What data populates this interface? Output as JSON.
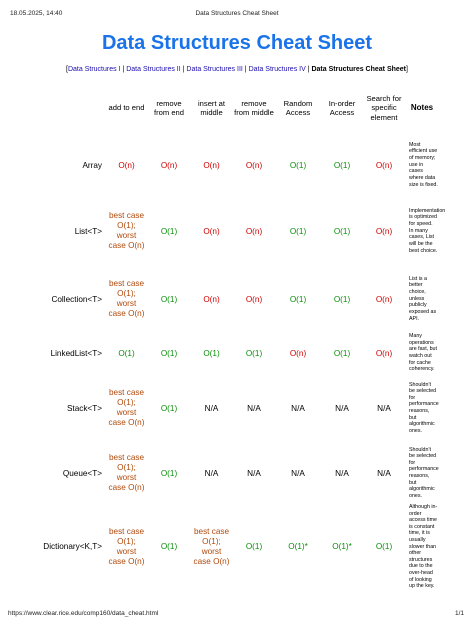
{
  "print": {
    "datetime": "18.05.2025, 14:40",
    "doc_title": "Data Structures Cheat Sheet",
    "url": "https://www.clear.rice.edu/comp160/data_cheat.html",
    "page": "1/1"
  },
  "title": "Data Structures Cheat Sheet",
  "nav": {
    "open": "[",
    "sep": " | ",
    "close": "]",
    "links": [
      "Data Structures I",
      "Data Structures II",
      "Data Structures III",
      "Data Structures IV"
    ],
    "current": "Data Structures Cheat Sheet"
  },
  "colors": {
    "title": "#1a73e8",
    "slow": "#d40000",
    "fast": "#0a8f0a",
    "mixed": "#b04a0c"
  },
  "table": {
    "headers": [
      "",
      "add to end",
      "remove from end",
      "insert at middle",
      "remove from middle",
      "Random Access",
      "In-order Access",
      "Search for specific element",
      "Notes"
    ],
    "rows": [
      {
        "name": "Array",
        "cells": [
          {
            "text": "O(n)",
            "tone": "red"
          },
          {
            "text": "O(n)",
            "tone": "red"
          },
          {
            "text": "O(n)",
            "tone": "red"
          },
          {
            "text": "O(n)",
            "tone": "red"
          },
          {
            "text": "O(1)",
            "tone": "green"
          },
          {
            "text": "O(1)",
            "tone": "green"
          },
          {
            "text": "O(n)",
            "tone": "red"
          }
        ],
        "note": "Most efficient use of memory; use in cases where data size is fixed."
      },
      {
        "name": "List<T>",
        "cells": [
          {
            "text": "best case O(1); worst case O(n)",
            "tone": "brown"
          },
          {
            "text": "O(1)",
            "tone": "green"
          },
          {
            "text": "O(n)",
            "tone": "red"
          },
          {
            "text": "O(n)",
            "tone": "red"
          },
          {
            "text": "O(1)",
            "tone": "green"
          },
          {
            "text": "O(1)",
            "tone": "green"
          },
          {
            "text": "O(n)",
            "tone": "red"
          }
        ],
        "note": "Implementation is optimized for speed. In many cases, List will be the best choice."
      },
      {
        "name": "Collection<T>",
        "cells": [
          {
            "text": "best case O(1); worst case O(n)",
            "tone": "brown"
          },
          {
            "text": "O(1)",
            "tone": "green"
          },
          {
            "text": "O(n)",
            "tone": "red"
          },
          {
            "text": "O(n)",
            "tone": "red"
          },
          {
            "text": "O(1)",
            "tone": "green"
          },
          {
            "text": "O(1)",
            "tone": "green"
          },
          {
            "text": "O(n)",
            "tone": "red"
          }
        ],
        "note": "List is a better choice, unless publicly exposed as API."
      },
      {
        "name": "LinkedList<T>",
        "cells": [
          {
            "text": "O(1)",
            "tone": "green"
          },
          {
            "text": "O(1)",
            "tone": "green"
          },
          {
            "text": "O(1)",
            "tone": "green"
          },
          {
            "text": "O(1)",
            "tone": "green"
          },
          {
            "text": "O(n)",
            "tone": "red"
          },
          {
            "text": "O(1)",
            "tone": "green"
          },
          {
            "text": "O(n)",
            "tone": "red"
          }
        ],
        "note": "Many operations are fast, but watch out for cache coherency."
      },
      {
        "name": "Stack<T>",
        "cells": [
          {
            "text": "best case O(1); worst case O(n)",
            "tone": "brown"
          },
          {
            "text": "O(1)",
            "tone": "green"
          },
          {
            "text": "N/A",
            "tone": "na"
          },
          {
            "text": "N/A",
            "tone": "na"
          },
          {
            "text": "N/A",
            "tone": "na"
          },
          {
            "text": "N/A",
            "tone": "na"
          },
          {
            "text": "N/A",
            "tone": "na"
          }
        ],
        "note": "Shouldn't be selected for performance reasons, but algorithmic ones."
      },
      {
        "name": "Queue<T>",
        "cells": [
          {
            "text": "best case O(1); worst case O(n)",
            "tone": "brown"
          },
          {
            "text": "O(1)",
            "tone": "green"
          },
          {
            "text": "N/A",
            "tone": "na"
          },
          {
            "text": "N/A",
            "tone": "na"
          },
          {
            "text": "N/A",
            "tone": "na"
          },
          {
            "text": "N/A",
            "tone": "na"
          },
          {
            "text": "N/A",
            "tone": "na"
          }
        ],
        "note": "Shouldn't be selected for performance reasons, but algorithmic ones."
      },
      {
        "name": "Dictionary<K,T>",
        "cells": [
          {
            "text": "best case O(1); worst case O(n)",
            "tone": "brown"
          },
          {
            "text": "O(1)",
            "tone": "green"
          },
          {
            "text": "best case O(1); worst case O(n)",
            "tone": "brown"
          },
          {
            "text": "O(1)",
            "tone": "green"
          },
          {
            "text": "O(1)*",
            "tone": "green"
          },
          {
            "text": "O(1)*",
            "tone": "green"
          },
          {
            "text": "O(1)",
            "tone": "green"
          }
        ],
        "note": "Although in-order access time is constant time, it is usually slower than other structures due to the over-head of looking up the key."
      }
    ]
  }
}
